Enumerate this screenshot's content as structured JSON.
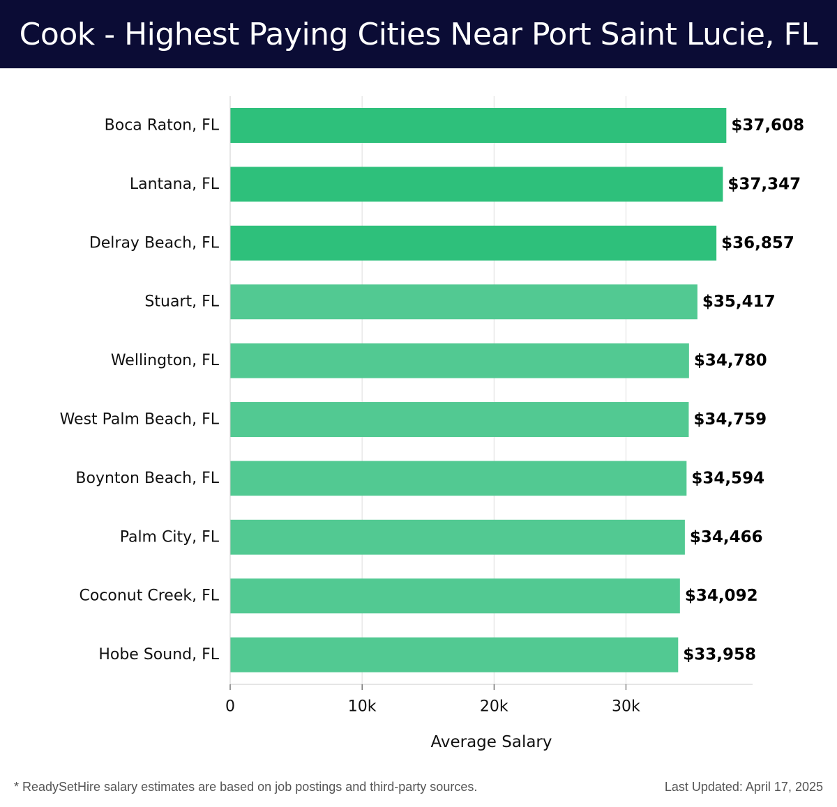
{
  "header": {
    "title": "Cook - Highest Paying Cities Near Port Saint Lucie, FL"
  },
  "chart_data": {
    "type": "bar",
    "orientation": "horizontal",
    "categories": [
      "Boca Raton, FL",
      "Lantana, FL",
      "Delray Beach, FL",
      "Stuart, FL",
      "Wellington, FL",
      "West Palm Beach, FL",
      "Boynton Beach, FL",
      "Palm City, FL",
      "Coconut Creek, FL",
      "Hobe Sound, FL"
    ],
    "values": [
      37608,
      37347,
      36857,
      35417,
      34780,
      34759,
      34594,
      34466,
      34092,
      33958
    ],
    "value_labels": [
      "$37,608",
      "$37,347",
      "$36,857",
      "$35,417",
      "$34,780",
      "$34,759",
      "$34,594",
      "$34,466",
      "$34,092",
      "$33,958"
    ],
    "xlabel": "Average Salary",
    "ylabel": "",
    "xlim": [
      0,
      39600
    ],
    "xticks": [
      0,
      10000,
      20000,
      30000
    ],
    "xtick_labels": [
      "0",
      "10k",
      "20k",
      "30k"
    ],
    "grid": true,
    "colors": {
      "top_bars": "#2ec07b",
      "other_bars": "#52c992",
      "grid": "#dddddd",
      "axis": "#cccccc"
    }
  },
  "footer": {
    "footnote": "* ReadySetHire salary estimates are based on job postings and third-party sources.",
    "updated": "Last Updated: April 17, 2025"
  }
}
